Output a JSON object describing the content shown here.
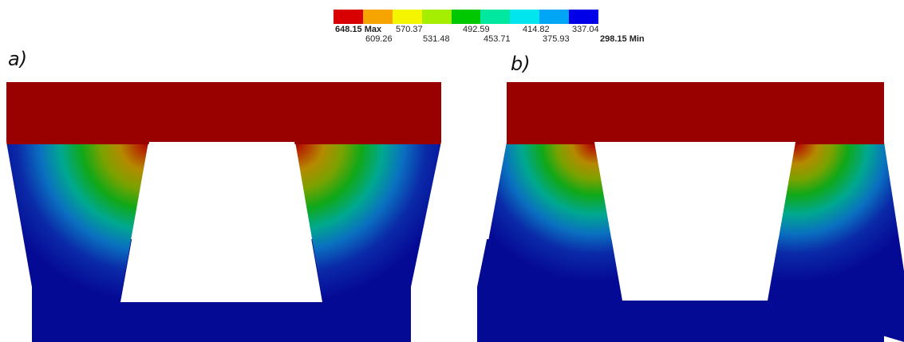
{
  "legend": {
    "colors": [
      "#d80000",
      "#f5a400",
      "#f5f500",
      "#a5ee00",
      "#00c800",
      "#00e8a0",
      "#00e5ee",
      "#00a5f5",
      "#0000e8"
    ],
    "max_label": "648.15 Max",
    "min_label": "298.15 Min",
    "values_row1": [
      "570.37",
      "492.59",
      "414.82",
      "337.04"
    ],
    "values_row2": [
      "609.26",
      "531.48",
      "453.71",
      "375.93"
    ]
  },
  "panels": {
    "a_label": "a)",
    "b_label": "b)"
  },
  "field_colors": {
    "hot": "#990000",
    "cold": "#050a95"
  }
}
